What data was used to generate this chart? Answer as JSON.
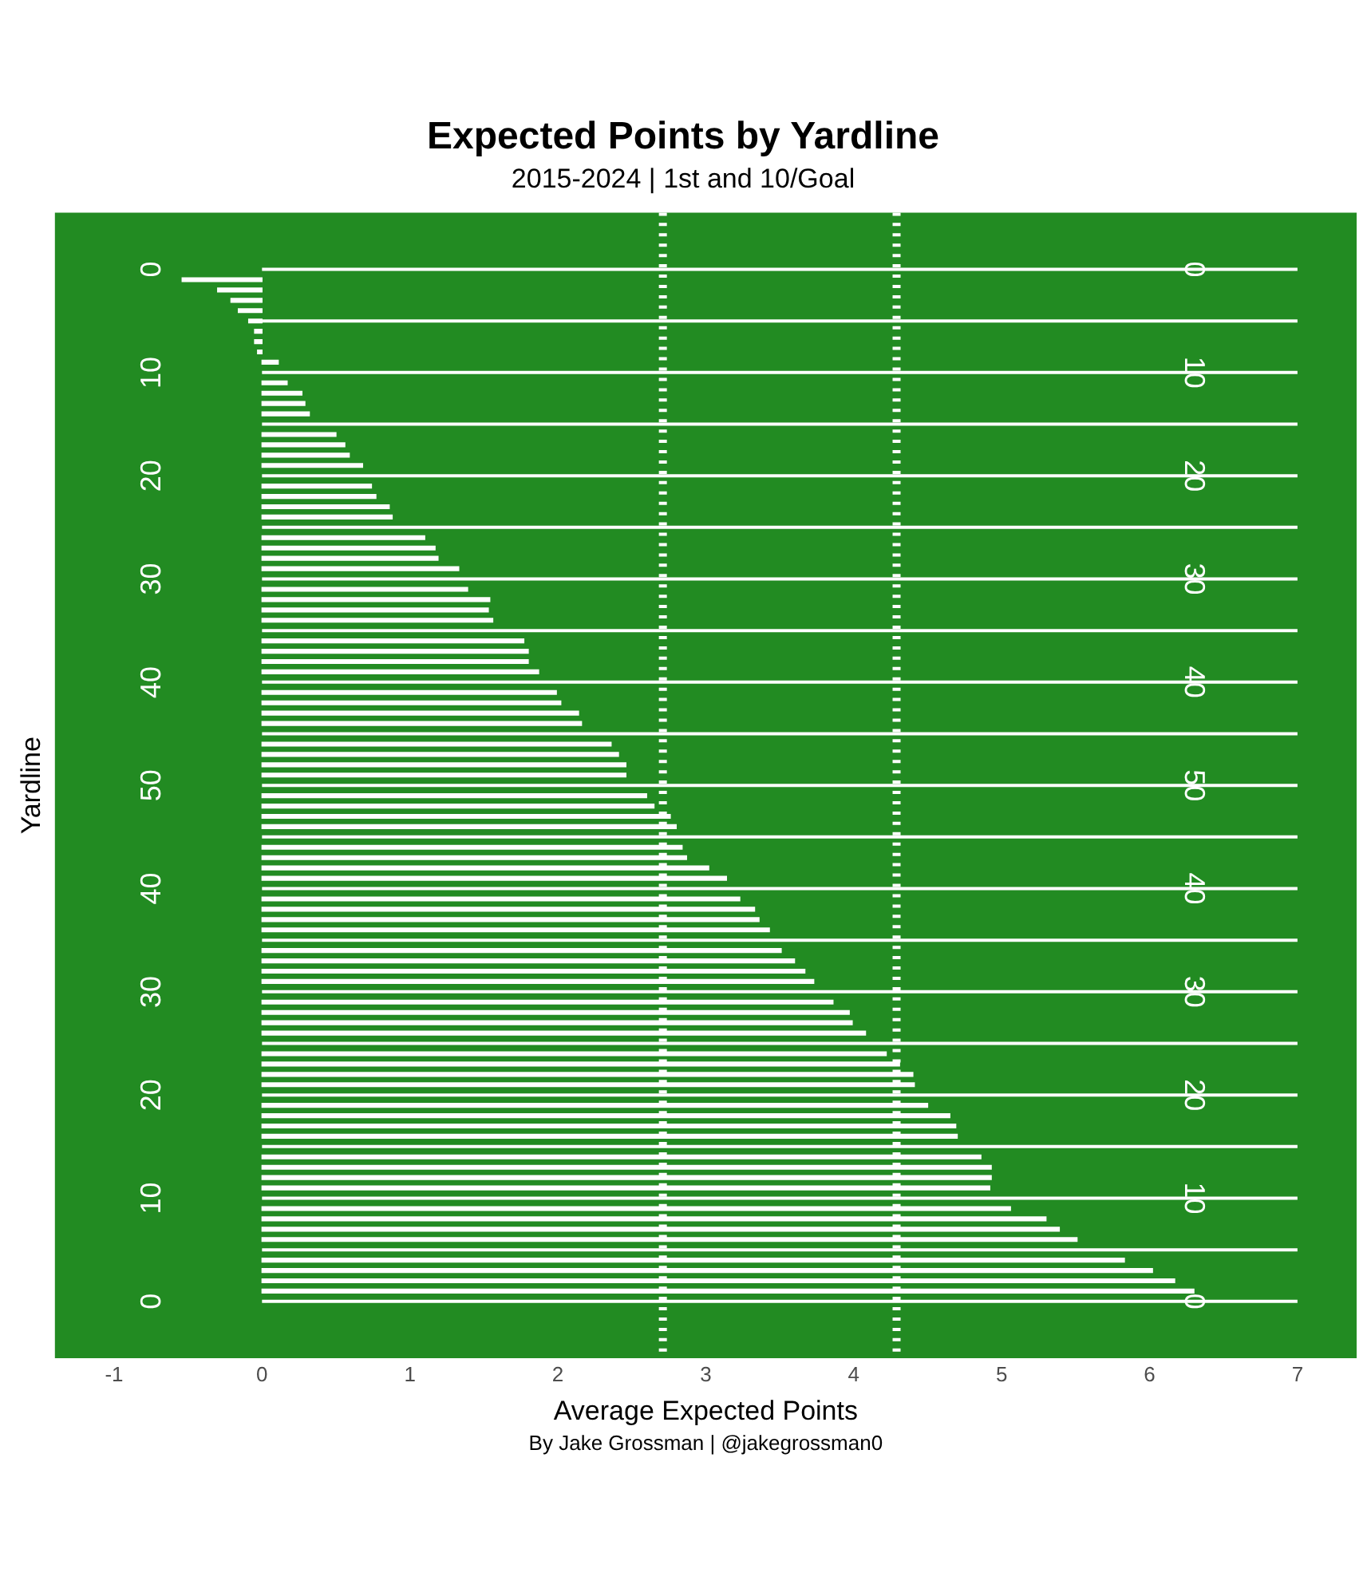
{
  "chart_data": {
    "type": "bar",
    "orientation": "horizontal",
    "title": "Expected Points by Yardline",
    "subtitle": "2015-2024 | 1st and 10/Goal",
    "xlabel": "Average Expected Points",
    "ylabel": "Yardline",
    "annotations": [
      "0",
      "10",
      "20",
      "30",
      "40",
      "50",
      "40",
      "30",
      "20",
      "10",
      "0",
      "By Jake Grossman | @jakegrossman0"
    ],
    "categories": [
      null,
      null,
      null,
      null,
      null,
      null,
      null,
      null,
      null,
      null,
      null,
      null,
      null,
      null,
      null,
      null,
      null,
      null,
      null,
      null,
      null,
      null,
      null,
      null,
      null,
      null,
      null,
      null,
      null,
      null,
      null,
      null,
      null,
      null,
      null,
      null,
      null,
      null,
      null,
      null,
      null,
      null,
      null,
      null,
      null,
      null,
      null,
      null,
      null,
      null,
      null,
      null,
      null,
      null,
      null,
      null,
      null,
      null,
      null,
      null,
      null,
      null,
      null,
      null,
      null,
      null,
      null,
      null,
      null,
      null,
      null,
      null,
      null,
      null,
      null,
      null,
      null,
      null,
      null,
      null,
      null,
      null,
      null,
      null,
      null,
      null,
      null,
      null,
      null,
      null,
      null,
      null,
      null,
      null,
      null,
      null,
      null,
      null,
      null,
      null,
      null,
      null,
      null,
      null,
      null,
      null,
      null,
      null,
      null,
      null,
      null
    ],
    "values": [
      null,
      null,
      null,
      null,
      null,
      null,
      -0.54,
      -0.3,
      -0.21,
      -0.16,
      -0.09,
      -0.05,
      -0.05,
      -0.03,
      0.11,
      null,
      0.17,
      0.27,
      0.29,
      0.32,
      null,
      0.5,
      0.56,
      0.59,
      0.68,
      null,
      0.74,
      0.77,
      0.86,
      0.88,
      null,
      1.1,
      1.17,
      1.19,
      1.33,
      null,
      1.39,
      1.54,
      1.53,
      1.56,
      null,
      1.77,
      1.8,
      1.8,
      1.87,
      null,
      1.99,
      2.02,
      2.14,
      2.16,
      null,
      2.36,
      2.41,
      2.46,
      2.46,
      null,
      2.6,
      2.65,
      2.76,
      2.8,
      null,
      2.84,
      2.87,
      3.02,
      3.14,
      null,
      3.23,
      3.33,
      3.36,
      3.43,
      null,
      3.51,
      3.6,
      3.67,
      3.73,
      null,
      3.86,
      3.97,
      3.99,
      4.08,
      null,
      4.22,
      4.31,
      4.4,
      4.41,
      null,
      4.5,
      4.65,
      4.69,
      4.7,
      null,
      4.86,
      4.93,
      4.93,
      4.92,
      null,
      5.06,
      5.3,
      5.39,
      5.51,
      null,
      5.83,
      6.02,
      6.17,
      6.3,
      null,
      null,
      null,
      null,
      null,
      null
    ],
    "color": "#ffffff",
    "xlim": [
      -1.4,
      7.4
    ],
    "xticks": [
      -1,
      0,
      1,
      2,
      3,
      4,
      5,
      6,
      7
    ],
    "tick_labels": "x",
    "grid": "y",
    "legend": false,
    "ref_lines": [
      {
        "axis": "x",
        "value": 2.71,
        "color": "#ffffff",
        "line_style": "dashed"
      },
      {
        "axis": "x",
        "value": 4.29,
        "color": "#ffffff",
        "line_style": "dashed"
      }
    ]
  }
}
